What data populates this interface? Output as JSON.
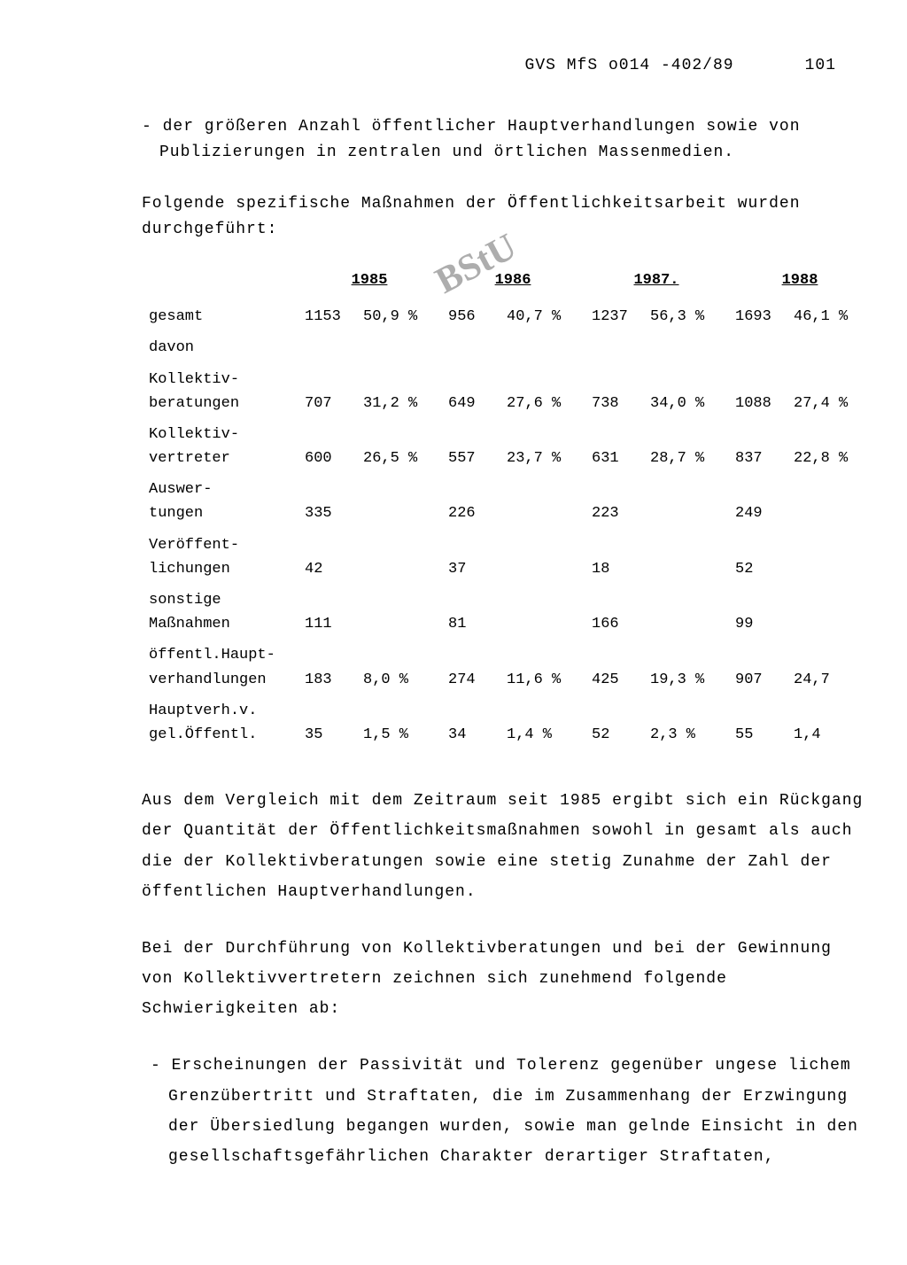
{
  "header": {
    "doc_id": "GVS MfS o014 -402/89",
    "page_num": "101"
  },
  "stamp_text": "BStU",
  "paragraphs": {
    "bullet_top": "- der größeren Anzahl öffentlicher Hauptverhandlungen sowie von Publizierungen in zentralen und örtlichen Massenmedien.",
    "intro": "Folgende spezifische Maßnahmen der Öffentlichkeitsarbeit wurden durchgeführt:",
    "body1": "Aus dem Vergleich mit dem Zeitraum seit 1985 ergibt sich ein Rückgang der Quantität der Öffentlichkeitsmaßnahmen sowohl in gesamt als auch die der Kollektivberatungen sowie eine stetig Zunahme der Zahl der öffentlichen Hauptverhandlungen.",
    "body2": "Bei der Durchführung von Kollektivberatungen und bei der Gewinnung von Kollektivvertretern zeichnen sich zunehmend folgende Schwierigkeiten ab:",
    "bullet_bottom": "- Erscheinungen der Passivität und Tolerenz gegenüber ungese lichem Grenzübertritt und Straftaten, die im Zusammenhang der Erzwingung der Übersiedlung begangen wurden, sowie man gelnde Einsicht in den gesellschaftsgefährlichen Charakter derartiger Straftaten,"
  },
  "table": {
    "years": [
      "1985",
      "1986",
      "1987.",
      "1988"
    ],
    "rows": [
      {
        "label_l1": "gesamt",
        "label_l2": "",
        "cells": [
          {
            "n": "1153",
            "p": "50,9 %"
          },
          {
            "n": "956",
            "p": "40,7 %"
          },
          {
            "n": "1237",
            "p": "56,3 %"
          },
          {
            "n": "1693",
            "p": "46,1 %"
          }
        ]
      },
      {
        "label_l1": "davon",
        "label_l2": "",
        "cells": [
          {
            "n": "",
            "p": ""
          },
          {
            "n": "",
            "p": ""
          },
          {
            "n": "",
            "p": ""
          },
          {
            "n": "",
            "p": ""
          }
        ]
      },
      {
        "label_l1": "Kollektiv-",
        "label_l2": "beratungen",
        "cells": [
          {
            "n": "707",
            "p": "31,2 %"
          },
          {
            "n": "649",
            "p": "27,6 %"
          },
          {
            "n": "738",
            "p": "34,0 %"
          },
          {
            "n": "1088",
            "p": "27,4 %"
          }
        ]
      },
      {
        "label_l1": "Kollektiv-",
        "label_l2": "vertreter",
        "cells": [
          {
            "n": "600",
            "p": "26,5 %"
          },
          {
            "n": "557",
            "p": "23,7 %"
          },
          {
            "n": "631",
            "p": "28,7 %"
          },
          {
            "n": "837",
            "p": "22,8 %"
          }
        ]
      },
      {
        "label_l1": "Auswer-",
        "label_l2": "tungen",
        "cells": [
          {
            "n": "335",
            "p": ""
          },
          {
            "n": "226",
            "p": ""
          },
          {
            "n": "223",
            "p": ""
          },
          {
            "n": "249",
            "p": ""
          }
        ]
      },
      {
        "label_l1": "Veröffent-",
        "label_l2": "lichungen",
        "cells": [
          {
            "n": "42",
            "p": ""
          },
          {
            "n": "37",
            "p": ""
          },
          {
            "n": "18",
            "p": ""
          },
          {
            "n": "52",
            "p": ""
          }
        ]
      },
      {
        "label_l1": "sonstige",
        "label_l2": "Maßnahmen",
        "cells": [
          {
            "n": "111",
            "p": ""
          },
          {
            "n": "81",
            "p": ""
          },
          {
            "n": "166",
            "p": ""
          },
          {
            "n": "99",
            "p": ""
          }
        ]
      },
      {
        "label_l1": "öffentl.Haupt-",
        "label_l2": "verhandlungen",
        "cells": [
          {
            "n": "183",
            "p": "8,0 %"
          },
          {
            "n": "274",
            "p": "11,6 %"
          },
          {
            "n": "425",
            "p": "19,3 %"
          },
          {
            "n": "907",
            "p": "24,7"
          }
        ]
      },
      {
        "label_l1": "Hauptverh.v.",
        "label_l2": "gel.Öffentl.",
        "cells": [
          {
            "n": "35",
            "p": "1,5 %"
          },
          {
            "n": "34",
            "p": "1,4 %"
          },
          {
            "n": "52",
            "p": "2,3 %"
          },
          {
            "n": "55",
            "p": "1,4"
          }
        ]
      }
    ]
  }
}
